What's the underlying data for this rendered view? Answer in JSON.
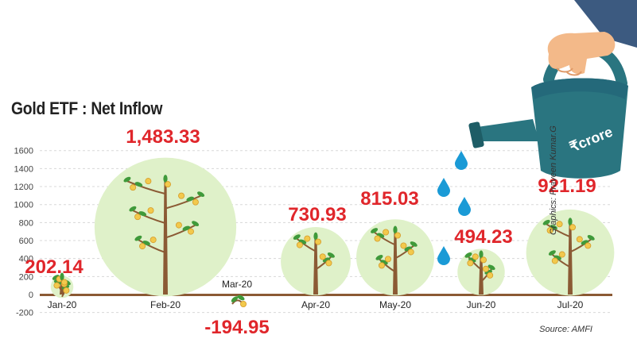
{
  "title": "Gold ETF : Net Inflow",
  "source": "Source: AMFI",
  "credit": "Graphics: Praveen Kumar.G",
  "can_label": "₹crore",
  "icons": {
    "watering_can": "watering-can-icon",
    "water_drop": "water-drop-icon",
    "tree": "tree-icon"
  },
  "colors": {
    "value_label": "#e0262b",
    "canopy": "#dff1c9",
    "trunk": "#8b5a34",
    "leaf": "#3f9a3a",
    "can": "#2a7580",
    "drop": "#1a9ad6"
  },
  "chart_data": {
    "type": "bar",
    "title": "Gold ETF : Net Inflow",
    "categories": [
      "Jan-20",
      "Feb-20",
      "Mar-20",
      "Apr-20",
      "May-20",
      "Jun-20",
      "Jul-20"
    ],
    "values": [
      202.14,
      1483.33,
      -194.95,
      730.93,
      815.03,
      494.23,
      921.19
    ],
    "value_labels": [
      "202.14",
      "1,483.33",
      "-194.95",
      "730.93",
      "815.03",
      "494.23",
      "921.19"
    ],
    "yticks": [
      "1600",
      "1400",
      "1200",
      "1000",
      "800",
      "600",
      "400",
      "200",
      "0",
      "-200"
    ],
    "ytick_values": [
      1600,
      1400,
      1200,
      1000,
      800,
      600,
      400,
      200,
      0,
      -200
    ],
    "ylim": [
      -200,
      1600
    ],
    "xlabel": "",
    "ylabel": "",
    "grid": true
  }
}
